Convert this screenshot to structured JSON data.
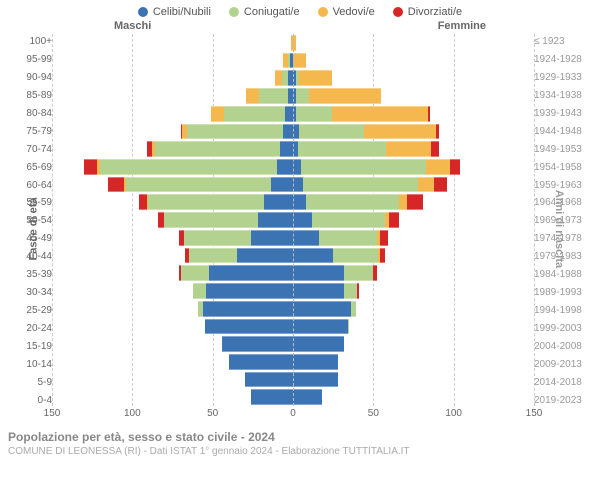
{
  "legend": [
    {
      "label": "Celibi/Nubili",
      "color": "#3b73b3"
    },
    {
      "label": "Coniugati/e",
      "color": "#b3d28f"
    },
    {
      "label": "Vedovi/e",
      "color": "#f5b84e"
    },
    {
      "label": "Divorziati/e",
      "color": "#d62728"
    }
  ],
  "side_labels": {
    "male": "Maschi",
    "female": "Femmine"
  },
  "axis_labels": {
    "left": "Fasce di età",
    "right": "Anni di nascita"
  },
  "x_axis": {
    "max": 150,
    "ticks": [
      150,
      100,
      50,
      0,
      50,
      100,
      150
    ]
  },
  "colors": {
    "grid": "#cccccc",
    "center": "#bbbbbb",
    "bg": "#ffffff",
    "tick_text": "#666666",
    "label_right": "#999999",
    "footer_title": "#888888",
    "footer_sub": "#aaaaaa"
  },
  "age_labels": [
    "100+",
    "95-99",
    "90-94",
    "85-89",
    "80-84",
    "75-79",
    "70-74",
    "65-69",
    "60-64",
    "55-59",
    "50-54",
    "45-49",
    "40-44",
    "35-39",
    "30-34",
    "25-29",
    "20-24",
    "15-19",
    "10-14",
    "5-9",
    "0-4"
  ],
  "birth_labels": [
    "≤ 1923",
    "1924-1928",
    "1929-1933",
    "1934-1938",
    "1939-1943",
    "1944-1948",
    "1949-1953",
    "1954-1958",
    "1959-1963",
    "1964-1968",
    "1969-1973",
    "1974-1978",
    "1979-1983",
    "1984-1988",
    "1989-1993",
    "1994-1998",
    "1999-2003",
    "2004-2008",
    "2009-2013",
    "2014-2018",
    "2019-2023"
  ],
  "rows": [
    {
      "m": [
        0,
        0,
        1,
        0
      ],
      "f": [
        0,
        0,
        2,
        0
      ]
    },
    {
      "m": [
        2,
        1,
        3,
        0
      ],
      "f": [
        0,
        0,
        8,
        0
      ]
    },
    {
      "m": [
        3,
        4,
        4,
        0
      ],
      "f": [
        2,
        2,
        20,
        0
      ]
    },
    {
      "m": [
        3,
        18,
        8,
        0
      ],
      "f": [
        2,
        8,
        45,
        0
      ]
    },
    {
      "m": [
        5,
        38,
        8,
        0
      ],
      "f": [
        2,
        22,
        60,
        1
      ]
    },
    {
      "m": [
        6,
        60,
        3,
        1
      ],
      "f": [
        4,
        40,
        45,
        2
      ]
    },
    {
      "m": [
        8,
        78,
        2,
        3
      ],
      "f": [
        3,
        55,
        28,
        5
      ]
    },
    {
      "m": [
        10,
        110,
        2,
        8
      ],
      "f": [
        5,
        78,
        15,
        6
      ]
    },
    {
      "m": [
        14,
        90,
        1,
        10
      ],
      "f": [
        6,
        72,
        10,
        8
      ]
    },
    {
      "m": [
        18,
        72,
        1,
        5
      ],
      "f": [
        8,
        58,
        5,
        10
      ]
    },
    {
      "m": [
        22,
        58,
        0,
        4
      ],
      "f": [
        12,
        45,
        3,
        6
      ]
    },
    {
      "m": [
        26,
        42,
        0,
        3
      ],
      "f": [
        16,
        36,
        2,
        5
      ]
    },
    {
      "m": [
        35,
        30,
        0,
        2
      ],
      "f": [
        25,
        28,
        1,
        3
      ]
    },
    {
      "m": [
        52,
        18,
        0,
        1
      ],
      "f": [
        32,
        18,
        0,
        2
      ]
    },
    {
      "m": [
        54,
        8,
        0,
        0
      ],
      "f": [
        32,
        8,
        0,
        1
      ]
    },
    {
      "m": [
        56,
        3,
        0,
        0
      ],
      "f": [
        36,
        3,
        0,
        0
      ]
    },
    {
      "m": [
        55,
        0,
        0,
        0
      ],
      "f": [
        34,
        1,
        0,
        0
      ]
    },
    {
      "m": [
        44,
        0,
        0,
        0
      ],
      "f": [
        32,
        0,
        0,
        0
      ]
    },
    {
      "m": [
        40,
        0,
        0,
        0
      ],
      "f": [
        28,
        0,
        0,
        0
      ]
    },
    {
      "m": [
        30,
        0,
        0,
        0
      ],
      "f": [
        28,
        0,
        0,
        0
      ]
    },
    {
      "m": [
        26,
        0,
        0,
        0
      ],
      "f": [
        18,
        0,
        0,
        0
      ]
    }
  ],
  "footer": {
    "title": "Popolazione per età, sesso e stato civile - 2024",
    "sub": "COMUNE DI LEONESSA (RI) - Dati ISTAT 1° gennaio 2024 - Elaborazione TUTTITALIA.IT"
  }
}
